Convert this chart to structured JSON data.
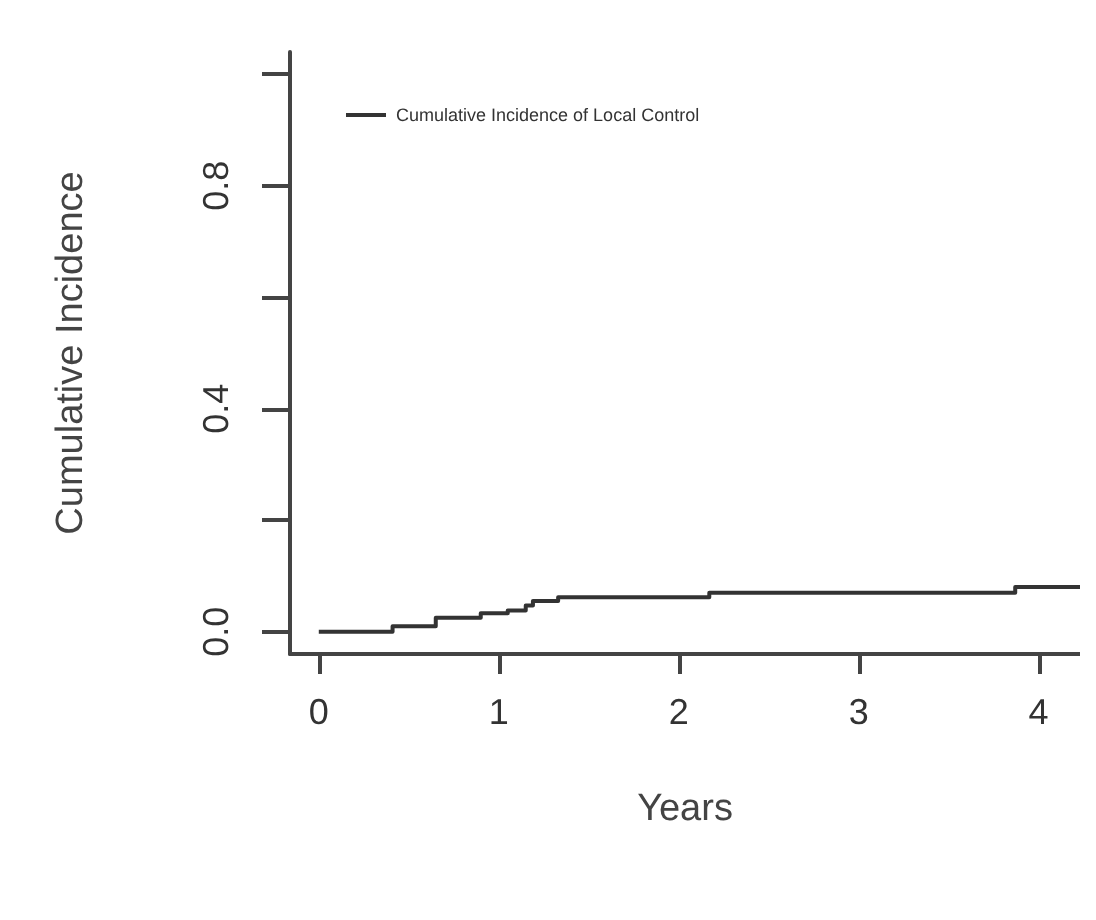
{
  "chart_data": {
    "type": "step",
    "xlabel": "Years",
    "ylabel": "Cumulative Incidence",
    "x": [
      0,
      0.41,
      0.65,
      0.9,
      1.05,
      1.15,
      1.19,
      1.33,
      2.17,
      3.87,
      4.23
    ],
    "series": [
      {
        "name": "Cumulative Incidence of Local Control",
        "color": "#333333",
        "values": [
          0,
          0.01,
          0.025,
          0.033,
          0.038,
          0.047,
          0.055,
          0.062,
          0.07,
          0.08,
          0.08
        ]
      }
    ],
    "xlim": [
      -0.16,
      4.23
    ],
    "ylim": [
      -0.04,
      1.04
    ],
    "xticks": [
      0,
      1,
      2,
      3,
      4
    ],
    "yticks": [
      {
        "value": 0,
        "label": "0.0"
      },
      {
        "value": 0.2,
        "label": null
      },
      {
        "value": 0.4,
        "label": "0.4"
      },
      {
        "value": 0.6,
        "label": null
      },
      {
        "value": 0.8,
        "label": "0.8"
      },
      {
        "value": 1,
        "label": null
      }
    ],
    "legend": "top left",
    "grid": false,
    "marker": "none",
    "line_style": "solid"
  }
}
